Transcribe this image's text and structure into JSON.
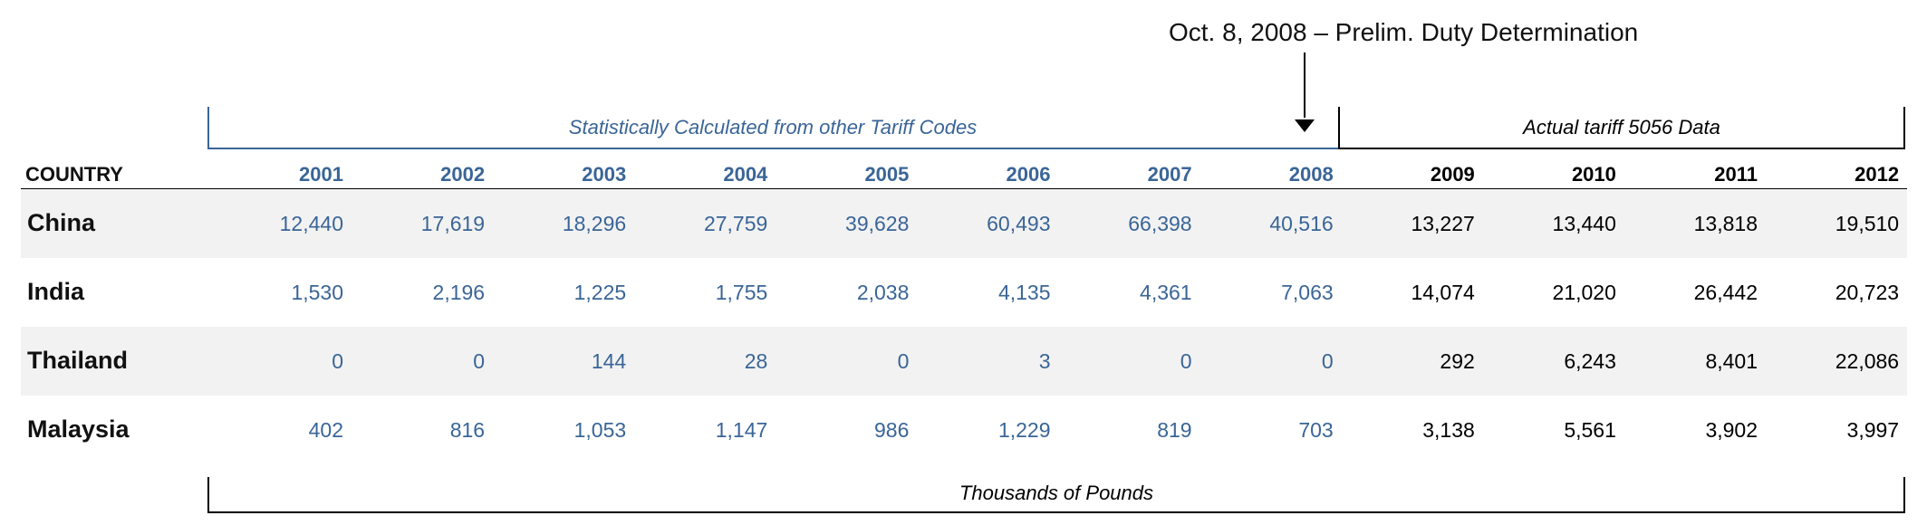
{
  "annotation": {
    "label": "Oct. 8, 2008 – Prelim. Duty Determination"
  },
  "bracket_labels": {
    "calculated": "Statistically Calculated from other Tariff Codes",
    "actual": "Actual tariff 5056 Data",
    "units": "Thousands of Pounds"
  },
  "colors": {
    "calculated": "#3a6597",
    "actual": "#000000",
    "row_shade": "#f2f2f2"
  },
  "chart_data": {
    "type": "table",
    "column_header": "COUNTRY",
    "years": [
      "2001",
      "2002",
      "2003",
      "2004",
      "2005",
      "2006",
      "2007",
      "2008",
      "2009",
      "2010",
      "2011",
      "2012"
    ],
    "calculated_years": [
      "2001",
      "2002",
      "2003",
      "2004",
      "2005",
      "2006",
      "2007",
      "2008"
    ],
    "actual_years": [
      "2009",
      "2010",
      "2011",
      "2012"
    ],
    "rows": [
      {
        "country": "China",
        "values": [
          "12,440",
          "17,619",
          "18,296",
          "27,759",
          "39,628",
          "60,493",
          "66,398",
          "40,516",
          "13,227",
          "13,440",
          "13,818",
          "19,510"
        ]
      },
      {
        "country": "India",
        "values": [
          "1,530",
          "2,196",
          "1,225",
          "1,755",
          "2,038",
          "4,135",
          "4,361",
          "7,063",
          "14,074",
          "21,020",
          "26,442",
          "20,723"
        ]
      },
      {
        "country": "Thailand",
        "values": [
          "0",
          "0",
          "144",
          "28",
          "0",
          "3",
          "0",
          "0",
          "292",
          "6,243",
          "8,401",
          "22,086"
        ]
      },
      {
        "country": "Malaysia",
        "values": [
          "402",
          "816",
          "1,053",
          "1,147",
          "986",
          "1,229",
          "819",
          "703",
          "3,138",
          "5,561",
          "3,902",
          "3,997"
        ]
      }
    ]
  }
}
